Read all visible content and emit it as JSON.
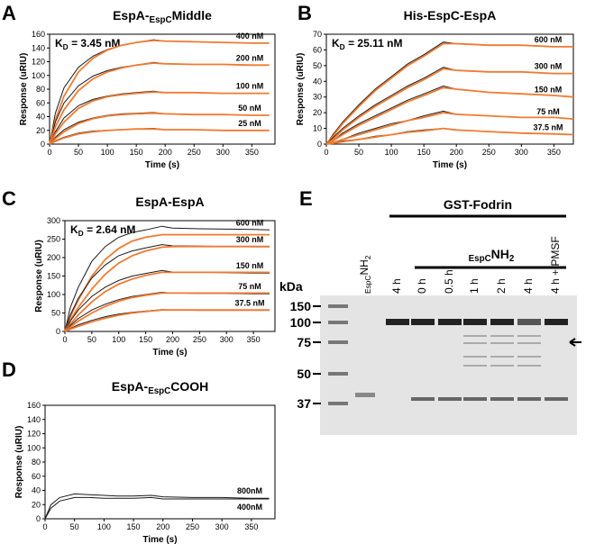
{
  "chart_data": [
    {
      "type": "line",
      "panel": "A",
      "title": [
        {
          "text": "EspA-"
        },
        {
          "text": "EspC",
          "sub": true
        },
        {
          "text": "Middle"
        }
      ],
      "annotation": [
        {
          "text": "K"
        },
        {
          "text": "D",
          "sub": true
        },
        {
          "text": " = 3.45 nM"
        }
      ],
      "x_label": "Time (s)",
      "y_label": "Response (uRIU)",
      "x": [
        0,
        10,
        25,
        50,
        75,
        100,
        125,
        150,
        180,
        200,
        250,
        300,
        350,
        380
      ],
      "xlim": [
        0,
        390
      ],
      "xticks": [
        0,
        50,
        100,
        150,
        200,
        250,
        300,
        350
      ],
      "ylim": [
        0,
        160
      ],
      "yticks": [
        0,
        20,
        40,
        60,
        80,
        100,
        120,
        140,
        160
      ],
      "fit_color": "#f07a30",
      "series": [
        {
          "name": "400 nM",
          "color": "#1a1a1a",
          "values": [
            0,
            45,
            82,
            112,
            128,
            138,
            144,
            148,
            152,
            150,
            149,
            148,
            147,
            147
          ],
          "fit": [
            0,
            35,
            70,
            105,
            125,
            137,
            144,
            148,
            151,
            150,
            149,
            148,
            147,
            147
          ]
        },
        {
          "name": "200 nM",
          "color": "#1a1a1a",
          "values": [
            0,
            32,
            60,
            85,
            99,
            107,
            112,
            115,
            119,
            117,
            116,
            116,
            115,
            115
          ],
          "fit": [
            0,
            25,
            50,
            78,
            95,
            105,
            111,
            115,
            118,
            117,
            116,
            116,
            115,
            115
          ]
        },
        {
          "name": "100 nM",
          "color": "#1a1a1a",
          "values": [
            0,
            18,
            38,
            56,
            65,
            70,
            73,
            75,
            77,
            75,
            75,
            74,
            74,
            74
          ],
          "fit": [
            0,
            15,
            32,
            52,
            63,
            69,
            72,
            74,
            76,
            75,
            75,
            74,
            74,
            74
          ]
        },
        {
          "name": "50 nM",
          "color": "#1a1a1a",
          "values": [
            0,
            10,
            21,
            32,
            38,
            42,
            44,
            45,
            46,
            44,
            43,
            43,
            42,
            42
          ],
          "fit": [
            0,
            8,
            18,
            30,
            37,
            41,
            43,
            44,
            45,
            44,
            43,
            43,
            42,
            42
          ]
        },
        {
          "name": "25 nM",
          "color": "#1a1a1a",
          "values": [
            0,
            5,
            10,
            16,
            19,
            20,
            21,
            22,
            23,
            21,
            21,
            20,
            20,
            20
          ],
          "fit": [
            0,
            4,
            9,
            15,
            18,
            20,
            21,
            22,
            22,
            21,
            21,
            20,
            20,
            20
          ]
        }
      ]
    },
    {
      "type": "line",
      "panel": "B",
      "title": [
        {
          "text": "His-EspC-EspA"
        }
      ],
      "annotation": [
        {
          "text": "K"
        },
        {
          "text": "D",
          "sub": true
        },
        {
          "text": " = 25.11 nM"
        }
      ],
      "x_label": "Time (s)",
      "y_label": "Response (uRIU)",
      "x": [
        0,
        10,
        25,
        50,
        75,
        100,
        125,
        150,
        180,
        200,
        250,
        300,
        350,
        380
      ],
      "xlim": [
        0,
        380
      ],
      "xticks": [
        0,
        50,
        100,
        150,
        200,
        250,
        300,
        350
      ],
      "ylim": [
        0,
        70
      ],
      "yticks": [
        0,
        10,
        20,
        30,
        40,
        50,
        60,
        70
      ],
      "fit_color": "#f07a30",
      "series": [
        {
          "name": "600 nM",
          "color": "#1a1a1a",
          "values": [
            0,
            6,
            14,
            25,
            35,
            43,
            51,
            57,
            65,
            64,
            63,
            63,
            62,
            62
          ],
          "fit": [
            0,
            5,
            13,
            24,
            34,
            42,
            50,
            56,
            64,
            64,
            63,
            63,
            62,
            62
          ]
        },
        {
          "name": "300 nM",
          "color": "#1a1a1a",
          "values": [
            0,
            4,
            10,
            18,
            25,
            31,
            37,
            42,
            49,
            47,
            46,
            46,
            45,
            45
          ],
          "fit": [
            0,
            3,
            9,
            17,
            24,
            30,
            36,
            41,
            48,
            47,
            46,
            46,
            45,
            45
          ]
        },
        {
          "name": "150 nM",
          "color": "#1a1a1a",
          "values": [
            0,
            2,
            7,
            13,
            18,
            23,
            28,
            32,
            37,
            35,
            33,
            32,
            31,
            30
          ],
          "fit": [
            0,
            2,
            6,
            12,
            17,
            22,
            27,
            31,
            36,
            35,
            33,
            32,
            31,
            30
          ]
        },
        {
          "name": "75 nM",
          "color": "#1a1a1a",
          "values": [
            0,
            1,
            3,
            7,
            10,
            13,
            15,
            18,
            21,
            19,
            18,
            17,
            17,
            16
          ],
          "fit": [
            0,
            1,
            3,
            6,
            9,
            12,
            15,
            17,
            20,
            19,
            18,
            17,
            17,
            16
          ]
        },
        {
          "name": "37.5 nM",
          "color": "#1a1a1a",
          "values": [
            0,
            0.5,
            2,
            3,
            5,
            6,
            8,
            9,
            10,
            9,
            8,
            7,
            6.5,
            6
          ],
          "fit": [
            0,
            0.5,
            1.5,
            3,
            4.5,
            6,
            7.5,
            8.5,
            10,
            9,
            8,
            7,
            6.5,
            6
          ]
        }
      ]
    },
    {
      "type": "line",
      "panel": "C",
      "title": [
        {
          "text": "EspA-EspA"
        }
      ],
      "annotation": [
        {
          "text": "K"
        },
        {
          "text": "D",
          "sub": true
        },
        {
          "text": " = 2.64 nM"
        }
      ],
      "x_label": "Time (s)",
      "y_label": "Response (uRIU)",
      "x": [
        0,
        10,
        25,
        50,
        75,
        100,
        125,
        150,
        180,
        200,
        250,
        300,
        350,
        380
      ],
      "xlim": [
        0,
        390
      ],
      "xticks": [
        0,
        50,
        100,
        150,
        200,
        250,
        300,
        350
      ],
      "ylim": [
        0,
        300
      ],
      "yticks": [
        0,
        50,
        100,
        150,
        200,
        250,
        300
      ],
      "fit_color": "#f07a30",
      "series": [
        {
          "name": "600 nM",
          "color": "#1a1a1a",
          "values": [
            0,
            65,
            120,
            190,
            230,
            255,
            268,
            275,
            285,
            280,
            278,
            277,
            276,
            275
          ],
          "fit": [
            0,
            40,
            85,
            150,
            195,
            225,
            245,
            255,
            262,
            262,
            262,
            262,
            262,
            262
          ]
        },
        {
          "name": "300 nM",
          "color": "#1a1a1a",
          "values": [
            0,
            45,
            90,
            145,
            180,
            205,
            218,
            226,
            235,
            232,
            231,
            230,
            229,
            229
          ],
          "fit": [
            0,
            30,
            65,
            115,
            155,
            185,
            205,
            218,
            228,
            230,
            230,
            230,
            230,
            230
          ]
        },
        {
          "name": "150 nM",
          "color": "#1a1a1a",
          "values": [
            0,
            28,
            58,
            95,
            120,
            138,
            150,
            157,
            165,
            161,
            160,
            159,
            158,
            158
          ],
          "fit": [
            0,
            20,
            45,
            80,
            108,
            128,
            142,
            152,
            160,
            160,
            160,
            160,
            160,
            160
          ]
        },
        {
          "name": "75 nM",
          "color": "#1a1a1a",
          "values": [
            0,
            16,
            35,
            58,
            74,
            86,
            95,
            100,
            106,
            104,
            103,
            103,
            102,
            102
          ],
          "fit": [
            0,
            12,
            28,
            50,
            68,
            82,
            92,
            98,
            104,
            104,
            104,
            104,
            104,
            104
          ]
        },
        {
          "name": "37.5 nM",
          "color": "#1a1a1a",
          "values": [
            0,
            8,
            18,
            30,
            40,
            47,
            52,
            55,
            59,
            58,
            57,
            57,
            57,
            57
          ],
          "fit": [
            0,
            6,
            14,
            26,
            36,
            44,
            50,
            54,
            58,
            58,
            58,
            58,
            58,
            58
          ]
        }
      ]
    },
    {
      "type": "line",
      "panel": "D",
      "title": [
        {
          "text": "EspA-"
        },
        {
          "text": "EspC",
          "sub": true
        },
        {
          "text": "COOH"
        }
      ],
      "x_label": "Time (s)",
      "y_label": "Response (uRIU)",
      "x": [
        0,
        10,
        25,
        50,
        75,
        100,
        125,
        150,
        180,
        200,
        250,
        300,
        350,
        380
      ],
      "xlim": [
        0,
        390
      ],
      "xticks": [
        0,
        50,
        100,
        150,
        200,
        250,
        300,
        350
      ],
      "ylim": [
        0,
        160
      ],
      "yticks": [
        0,
        20,
        40,
        60,
        80,
        100,
        120,
        140,
        160
      ],
      "series": [
        {
          "name": "800nM",
          "color": "#1a1a1a",
          "values": [
            0,
            20,
            30,
            35,
            34,
            33,
            32,
            32,
            33,
            31,
            30,
            30,
            29,
            29
          ]
        },
        {
          "name": "400nM",
          "color": "#1a1a1a",
          "values": [
            0,
            15,
            25,
            30,
            30,
            29,
            29,
            29,
            30,
            28,
            28,
            28,
            28,
            28
          ]
        }
      ]
    }
  ],
  "gel": {
    "panel": "E",
    "header": "GST-Fodrin",
    "subheader": [
      {
        "text": "EspC",
        "sub": true
      },
      {
        "text": "NH"
      },
      {
        "text": "2",
        "sub": true
      }
    ],
    "first_lane": [
      {
        "text": "EspC",
        "sub": true
      },
      {
        "text": "NH"
      },
      {
        "text": "2",
        "sub": true
      }
    ],
    "lanes": [
      "4 h",
      "0 h",
      "0.5 h",
      "1 h",
      "2 h",
      "4 h",
      "4 h + PMSF"
    ],
    "unit": "kDa",
    "markers": [
      150,
      100,
      75,
      50,
      37
    ]
  }
}
